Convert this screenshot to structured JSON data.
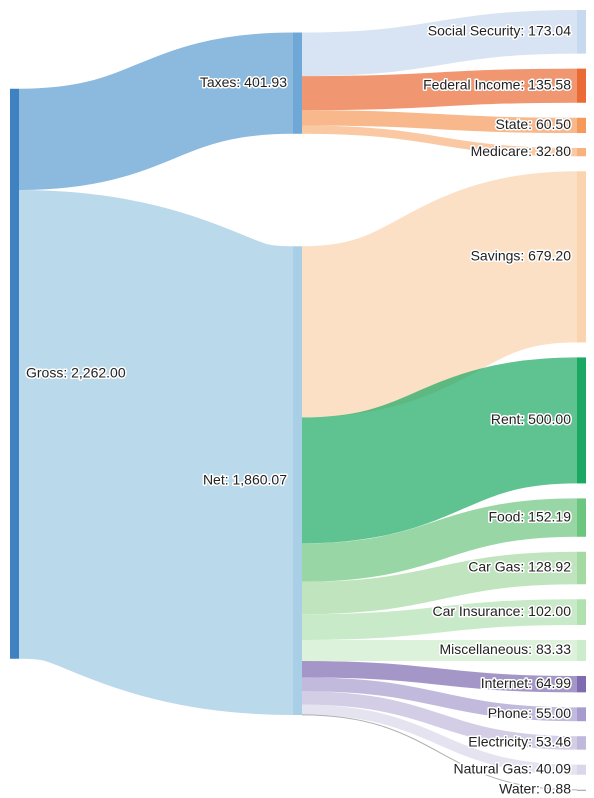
{
  "chart_data": {
    "type": "sankey",
    "title": "",
    "nodes": [
      {
        "id": "gross",
        "label": "Gross: 2,262.00",
        "value": 2262.0,
        "column": 0,
        "color": "#3f82c2"
      },
      {
        "id": "taxes",
        "label": "Taxes: 401.93",
        "value": 401.93,
        "column": 1,
        "color": "#6fa8d6"
      },
      {
        "id": "net",
        "label": "Net: 1,860.07",
        "value": 1860.07,
        "column": 1,
        "color": "#a9cfe6"
      },
      {
        "id": "social_security",
        "label": "Social Security: 173.04",
        "value": 173.04,
        "column": 2,
        "color": "#c7d9ee"
      },
      {
        "id": "federal_income",
        "label": "Federal Income: 135.58",
        "value": 135.58,
        "column": 2,
        "color": "#ea6b35"
      },
      {
        "id": "state",
        "label": "State: 60.50",
        "value": 60.5,
        "column": 2,
        "color": "#f59a5a"
      },
      {
        "id": "medicare",
        "label": "Medicare: 32.80",
        "value": 32.8,
        "column": 2,
        "color": "#f8b27e"
      },
      {
        "id": "savings",
        "label": "Savings: 679.20",
        "value": 679.2,
        "column": 2,
        "color": "#fbd3ae"
      },
      {
        "id": "rent",
        "label": "Rent: 500.00",
        "value": 500.0,
        "column": 2,
        "color": "#1aa862"
      },
      {
        "id": "food",
        "label": "Food: 152.19",
        "value": 152.19,
        "column": 2,
        "color": "#6cc67f"
      },
      {
        "id": "car_gas",
        "label": "Car Gas: 128.92",
        "value": 128.92,
        "column": 2,
        "color": "#a4d9a2"
      },
      {
        "id": "car_insurance",
        "label": "Car Insurance: 102.00",
        "value": 102.0,
        "column": 2,
        "color": "#b2e1b0"
      },
      {
        "id": "miscellaneous",
        "label": "Miscellaneous: 83.33",
        "value": 83.33,
        "column": 2,
        "color": "#cdeccb"
      },
      {
        "id": "internet",
        "label": "Internet: 64.99",
        "value": 64.99,
        "column": 2,
        "color": "#7e6bb0"
      },
      {
        "id": "phone",
        "label": "Phone: 55.00",
        "value": 55.0,
        "column": 2,
        "color": "#a79ccd"
      },
      {
        "id": "electricity",
        "label": "Electricity: 53.46",
        "value": 53.46,
        "column": 2,
        "color": "#c0b9dc"
      },
      {
        "id": "natural_gas",
        "label": "Natural Gas: 40.09",
        "value": 40.09,
        "column": 2,
        "color": "#dbd7eb"
      },
      {
        "id": "water",
        "label": "Water: 0.88",
        "value": 0.88,
        "column": 2,
        "color": "#9a9a9a"
      }
    ],
    "links": [
      {
        "source": "gross",
        "target": "taxes",
        "value": 401.93
      },
      {
        "source": "gross",
        "target": "net",
        "value": 1860.07
      },
      {
        "source": "taxes",
        "target": "social_security",
        "value": 173.04
      },
      {
        "source": "taxes",
        "target": "federal_income",
        "value": 135.58
      },
      {
        "source": "taxes",
        "target": "state",
        "value": 60.5
      },
      {
        "source": "taxes",
        "target": "medicare",
        "value": 32.8
      },
      {
        "source": "net",
        "target": "savings",
        "value": 679.2
      },
      {
        "source": "net",
        "target": "rent",
        "value": 500.0
      },
      {
        "source": "net",
        "target": "food",
        "value": 152.19
      },
      {
        "source": "net",
        "target": "car_gas",
        "value": 128.92
      },
      {
        "source": "net",
        "target": "car_insurance",
        "value": 102.0
      },
      {
        "source": "net",
        "target": "miscellaneous",
        "value": 83.33
      },
      {
        "source": "net",
        "target": "internet",
        "value": 64.99
      },
      {
        "source": "net",
        "target": "phone",
        "value": 55.0
      },
      {
        "source": "net",
        "target": "electricity",
        "value": 53.46
      },
      {
        "source": "net",
        "target": "natural_gas",
        "value": 40.09
      },
      {
        "source": "net",
        "target": "water",
        "value": 0.88
      }
    ]
  }
}
